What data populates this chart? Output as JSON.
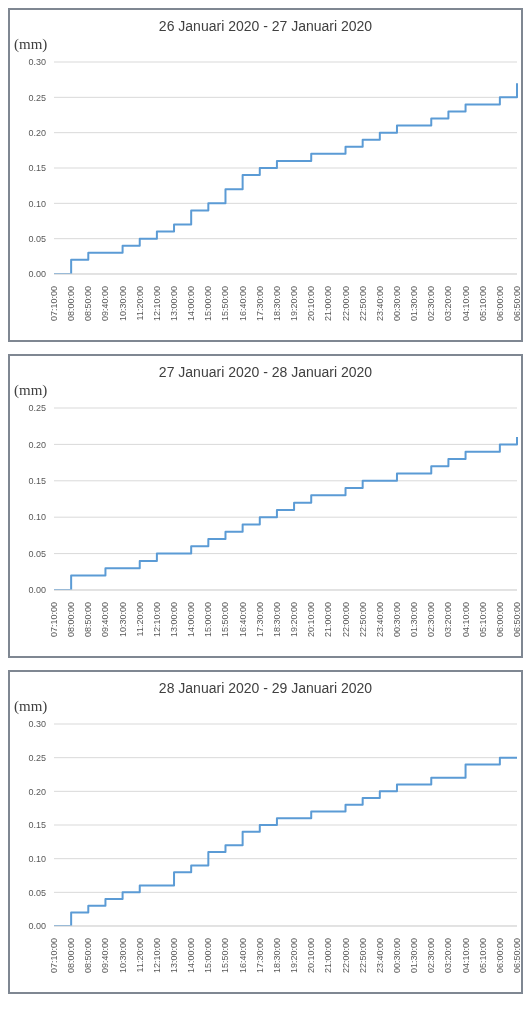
{
  "chart_data": [
    {
      "type": "step",
      "title": "26 Januari 2020 - 27 Januari 2020",
      "ylabel": "(mm)",
      "categories": [
        "07:10:00",
        "08:00:00",
        "08:50:00",
        "09:40:00",
        "10:30:00",
        "11:20:00",
        "12:10:00",
        "13:00:00",
        "14:00:00",
        "15:00:00",
        "15:50:00",
        "16:40:00",
        "17:30:00",
        "18:30:00",
        "19:20:00",
        "20:10:00",
        "21:00:00",
        "22:00:00",
        "22:50:00",
        "23:40:00",
        "00:30:00",
        "01:30:00",
        "02:30:00",
        "03:20:00",
        "04:10:00",
        "05:10:00",
        "06:00:00",
        "06:50:00"
      ],
      "series": [
        {
          "color": "#5b9bd5",
          "values": [
            0,
            0.02,
            0.03,
            0.03,
            0.04,
            0.05,
            0.06,
            0.07,
            0.09,
            0.1,
            0.12,
            0.14,
            0.15,
            0.16,
            0.16,
            0.17,
            0.17,
            0.18,
            0.19,
            0.2,
            0.21,
            0.21,
            0.22,
            0.23,
            0.24,
            0.24,
            0.25,
            0.27
          ]
        }
      ],
      "ylim": [
        0,
        0.3
      ],
      "yticks": [
        {
          "value": 0,
          "label": "0.00"
        },
        {
          "value": 0.05,
          "label": "0.05"
        },
        {
          "value": 0.1,
          "label": "0.10"
        },
        {
          "value": 0.15,
          "label": "0.15"
        },
        {
          "value": 0.2,
          "label": "0.20"
        },
        {
          "value": 0.25,
          "label": "0.25"
        },
        {
          "value": 0.3,
          "label": "0.30"
        }
      ],
      "grid": "y",
      "legend": false
    },
    {
      "type": "step",
      "title": "27 Januari 2020 - 28 Januari 2020",
      "ylabel": "(mm)",
      "categories": [
        "07:10:00",
        "08:00:00",
        "08:50:00",
        "09:40:00",
        "10:30:00",
        "11:20:00",
        "12:10:00",
        "13:00:00",
        "14:00:00",
        "15:00:00",
        "15:50:00",
        "16:40:00",
        "17:30:00",
        "18:30:00",
        "19:20:00",
        "20:10:00",
        "21:00:00",
        "22:00:00",
        "22:50:00",
        "23:40:00",
        "00:30:00",
        "01:30:00",
        "02:30:00",
        "03:20:00",
        "04:10:00",
        "05:10:00",
        "06:00:00",
        "06:50:00"
      ],
      "series": [
        {
          "color": "#5b9bd5",
          "values": [
            0,
            0.02,
            0.02,
            0.03,
            0.03,
            0.04,
            0.05,
            0.05,
            0.06,
            0.07,
            0.08,
            0.09,
            0.1,
            0.11,
            0.12,
            0.13,
            0.13,
            0.14,
            0.15,
            0.15,
            0.16,
            0.16,
            0.17,
            0.18,
            0.19,
            0.19,
            0.2,
            0.21
          ]
        }
      ],
      "ylim": [
        0,
        0.25
      ],
      "yticks": [
        {
          "value": 0,
          "label": "0.00"
        },
        {
          "value": 0.05,
          "label": "0.05"
        },
        {
          "value": 0.1,
          "label": "0.10"
        },
        {
          "value": 0.15,
          "label": "0.15"
        },
        {
          "value": 0.2,
          "label": "0.20"
        },
        {
          "value": 0.25,
          "label": "0.25"
        }
      ],
      "grid": "y",
      "legend": false
    },
    {
      "type": "step",
      "title": "28 Januari 2020 - 29 Januari 2020",
      "ylabel": "(mm)",
      "categories": [
        "07:10:00",
        "08:00:00",
        "08:50:00",
        "09:40:00",
        "10:30:00",
        "11:20:00",
        "12:10:00",
        "13:00:00",
        "14:00:00",
        "15:00:00",
        "15:50:00",
        "16:40:00",
        "17:30:00",
        "18:30:00",
        "19:20:00",
        "20:10:00",
        "21:00:00",
        "22:00:00",
        "22:50:00",
        "23:40:00",
        "00:30:00",
        "01:30:00",
        "02:30:00",
        "03:20:00",
        "04:10:00",
        "05:10:00",
        "06:00:00",
        "06:50:00"
      ],
      "series": [
        {
          "color": "#5b9bd5",
          "values": [
            0,
            0.02,
            0.03,
            0.04,
            0.05,
            0.06,
            0.06,
            0.08,
            0.09,
            0.11,
            0.12,
            0.14,
            0.15,
            0.16,
            0.16,
            0.17,
            0.17,
            0.18,
            0.19,
            0.2,
            0.21,
            0.21,
            0.22,
            0.22,
            0.24,
            0.24,
            0.25,
            0.25
          ]
        }
      ],
      "ylim": [
        0,
        0.3
      ],
      "yticks": [
        {
          "value": 0,
          "label": "0.00"
        },
        {
          "value": 0.05,
          "label": "0.05"
        },
        {
          "value": 0.1,
          "label": "0.10"
        },
        {
          "value": 0.15,
          "label": "0.15"
        },
        {
          "value": 0.2,
          "label": "0.20"
        },
        {
          "value": 0.25,
          "label": "0.25"
        },
        {
          "value": 0.3,
          "label": "0.30"
        }
      ],
      "grid": "y",
      "legend": false
    }
  ]
}
